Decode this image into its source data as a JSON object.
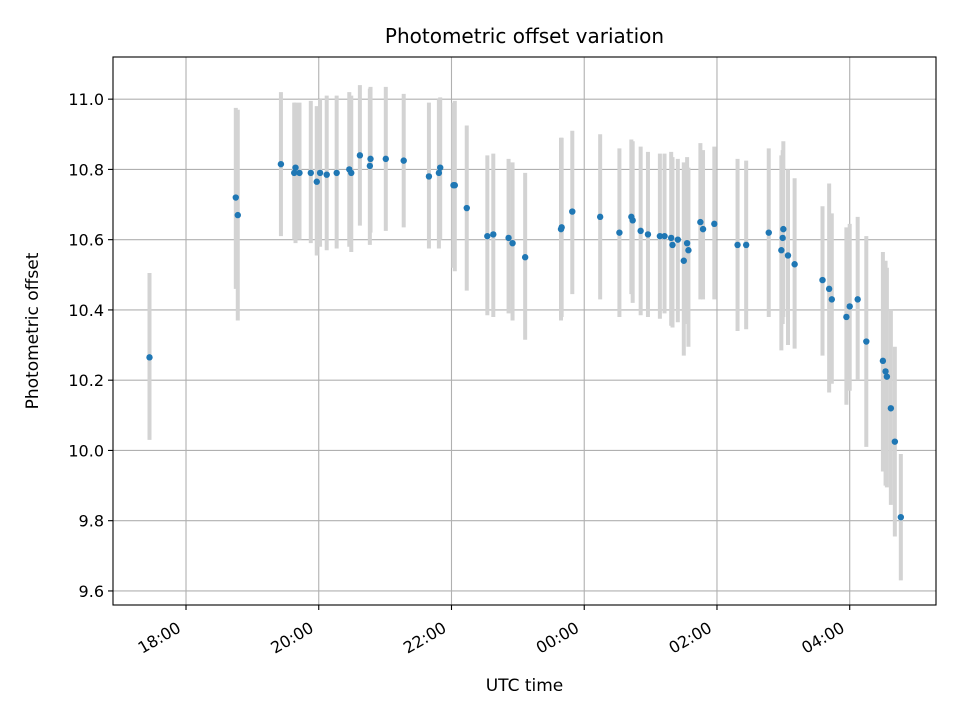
{
  "chart_data": {
    "type": "scatter",
    "title": "Photometric offset variation",
    "xlabel": "UTC time",
    "ylabel": "Photometric offset",
    "x_unit": "hours since 00:00 UTC",
    "xlim": [
      -7.1,
      5.3
    ],
    "ylim": [
      9.56,
      11.12
    ],
    "grid": true,
    "xticks": [
      {
        "value": -6,
        "label": "18:00"
      },
      {
        "value": -4,
        "label": "20:00"
      },
      {
        "value": -2,
        "label": "22:00"
      },
      {
        "value": 0,
        "label": "00:00"
      },
      {
        "value": 2,
        "label": "02:00"
      },
      {
        "value": 4,
        "label": "04:00"
      }
    ],
    "yticks": [
      {
        "value": 9.6,
        "label": "9.6"
      },
      {
        "value": 9.8,
        "label": "9.8"
      },
      {
        "value": 10.0,
        "label": "10.0"
      },
      {
        "value": 10.2,
        "label": "10.2"
      },
      {
        "value": 10.4,
        "label": "10.4"
      },
      {
        "value": 10.6,
        "label": "10.6"
      },
      {
        "value": 10.8,
        "label": "10.8"
      },
      {
        "value": 11.0,
        "label": "11.0"
      }
    ],
    "point_color": "#1f77b4",
    "errorbar_color": "#d3d3d3",
    "points": [
      {
        "x": -6.55,
        "y": 10.265,
        "lo": 10.03,
        "hi": 10.505
      },
      {
        "x": -5.25,
        "y": 10.72,
        "lo": 10.46,
        "hi": 10.975
      },
      {
        "x": -5.22,
        "y": 10.67,
        "lo": 10.37,
        "hi": 10.97
      },
      {
        "x": -4.57,
        "y": 10.815,
        "lo": 10.61,
        "hi": 11.02
      },
      {
        "x": -4.37,
        "y": 10.79,
        "lo": 10.6,
        "hi": 10.99
      },
      {
        "x": -4.35,
        "y": 10.805,
        "lo": 10.59,
        "hi": 10.99
      },
      {
        "x": -4.29,
        "y": 10.79,
        "lo": 10.6,
        "hi": 10.99
      },
      {
        "x": -4.12,
        "y": 10.79,
        "lo": 10.59,
        "hi": 10.995
      },
      {
        "x": -4.03,
        "y": 10.765,
        "lo": 10.555,
        "hi": 10.98
      },
      {
        "x": -3.98,
        "y": 10.79,
        "lo": 10.58,
        "hi": 11.0
      },
      {
        "x": -3.88,
        "y": 10.785,
        "lo": 10.57,
        "hi": 11.01
      },
      {
        "x": -3.73,
        "y": 10.79,
        "lo": 10.575,
        "hi": 11.01
      },
      {
        "x": -3.54,
        "y": 10.8,
        "lo": 10.58,
        "hi": 11.02
      },
      {
        "x": -3.51,
        "y": 10.79,
        "lo": 10.565,
        "hi": 11.01
      },
      {
        "x": -3.38,
        "y": 10.84,
        "lo": 10.64,
        "hi": 11.04
      },
      {
        "x": -3.22,
        "y": 10.83,
        "lo": 10.62,
        "hi": 11.035
      },
      {
        "x": -3.23,
        "y": 10.81,
        "lo": 10.585,
        "hi": 11.03
      },
      {
        "x": -2.99,
        "y": 10.83,
        "lo": 10.625,
        "hi": 11.035
      },
      {
        "x": -2.72,
        "y": 10.825,
        "lo": 10.635,
        "hi": 11.015
      },
      {
        "x": -2.34,
        "y": 10.78,
        "lo": 10.575,
        "hi": 10.99
      },
      {
        "x": -2.19,
        "y": 10.79,
        "lo": 10.575,
        "hi": 11.0
      },
      {
        "x": -2.17,
        "y": 10.805,
        "lo": 10.6,
        "hi": 11.005
      },
      {
        "x": -1.97,
        "y": 10.755,
        "lo": 10.52,
        "hi": 10.99
      },
      {
        "x": -1.95,
        "y": 10.755,
        "lo": 10.51,
        "hi": 10.995
      },
      {
        "x": -1.77,
        "y": 10.69,
        "lo": 10.455,
        "hi": 10.925
      },
      {
        "x": -1.46,
        "y": 10.61,
        "lo": 10.385,
        "hi": 10.84
      },
      {
        "x": -1.37,
        "y": 10.615,
        "lo": 10.38,
        "hi": 10.845
      },
      {
        "x": -1.14,
        "y": 10.605,
        "lo": 10.39,
        "hi": 10.83
      },
      {
        "x": -1.08,
        "y": 10.59,
        "lo": 10.37,
        "hi": 10.82
      },
      {
        "x": -0.89,
        "y": 10.55,
        "lo": 10.315,
        "hi": 10.79
      },
      {
        "x": -0.35,
        "y": 10.63,
        "lo": 10.37,
        "hi": 10.89
      },
      {
        "x": -0.34,
        "y": 10.635,
        "lo": 10.38,
        "hi": 10.89
      },
      {
        "x": -0.18,
        "y": 10.68,
        "lo": 10.445,
        "hi": 10.91
      },
      {
        "x": 0.24,
        "y": 10.665,
        "lo": 10.43,
        "hi": 10.9
      },
      {
        "x": 0.53,
        "y": 10.62,
        "lo": 10.38,
        "hi": 10.86
      },
      {
        "x": 0.71,
        "y": 10.665,
        "lo": 10.445,
        "hi": 10.885
      },
      {
        "x": 0.73,
        "y": 10.655,
        "lo": 10.42,
        "hi": 10.88
      },
      {
        "x": 0.85,
        "y": 10.625,
        "lo": 10.385,
        "hi": 10.865
      },
      {
        "x": 0.96,
        "y": 10.615,
        "lo": 10.38,
        "hi": 10.85
      },
      {
        "x": 1.14,
        "y": 10.61,
        "lo": 10.375,
        "hi": 10.845
      },
      {
        "x": 1.21,
        "y": 10.61,
        "lo": 10.39,
        "hi": 10.845
      },
      {
        "x": 1.31,
        "y": 10.605,
        "lo": 10.355,
        "hi": 10.85
      },
      {
        "x": 1.33,
        "y": 10.585,
        "lo": 10.35,
        "hi": 10.835
      },
      {
        "x": 1.41,
        "y": 10.6,
        "lo": 10.365,
        "hi": 10.83
      },
      {
        "x": 1.5,
        "y": 10.54,
        "lo": 10.27,
        "hi": 10.82
      },
      {
        "x": 1.55,
        "y": 10.59,
        "lo": 10.36,
        "hi": 10.835
      },
      {
        "x": 1.57,
        "y": 10.57,
        "lo": 10.295,
        "hi": 10.805
      },
      {
        "x": 1.75,
        "y": 10.65,
        "lo": 10.43,
        "hi": 10.875
      },
      {
        "x": 1.79,
        "y": 10.63,
        "lo": 10.43,
        "hi": 10.855
      },
      {
        "x": 1.96,
        "y": 10.645,
        "lo": 10.43,
        "hi": 10.865
      },
      {
        "x": 2.31,
        "y": 10.585,
        "lo": 10.34,
        "hi": 10.83
      },
      {
        "x": 2.44,
        "y": 10.585,
        "lo": 10.345,
        "hi": 10.825
      },
      {
        "x": 2.78,
        "y": 10.62,
        "lo": 10.38,
        "hi": 10.86
      },
      {
        "x": 2.97,
        "y": 10.57,
        "lo": 10.285,
        "hi": 10.84
      },
      {
        "x": 2.99,
        "y": 10.605,
        "lo": 10.36,
        "hi": 10.855
      },
      {
        "x": 3.0,
        "y": 10.63,
        "lo": 10.38,
        "hi": 10.88
      },
      {
        "x": 3.07,
        "y": 10.555,
        "lo": 10.3,
        "hi": 10.8
      },
      {
        "x": 3.17,
        "y": 10.53,
        "lo": 10.29,
        "hi": 10.775
      },
      {
        "x": 3.59,
        "y": 10.485,
        "lo": 10.27,
        "hi": 10.695
      },
      {
        "x": 3.69,
        "y": 10.46,
        "lo": 10.165,
        "hi": 10.76
      },
      {
        "x": 3.73,
        "y": 10.43,
        "lo": 10.19,
        "hi": 10.675
      },
      {
        "x": 3.95,
        "y": 10.38,
        "lo": 10.13,
        "hi": 10.635
      },
      {
        "x": 4.0,
        "y": 10.41,
        "lo": 10.17,
        "hi": 10.645
      },
      {
        "x": 4.12,
        "y": 10.43,
        "lo": 10.2,
        "hi": 10.665
      },
      {
        "x": 4.25,
        "y": 10.31,
        "lo": 10.01,
        "hi": 10.61
      },
      {
        "x": 4.5,
        "y": 10.255,
        "lo": 9.94,
        "hi": 10.565
      },
      {
        "x": 4.54,
        "y": 10.225,
        "lo": 9.9,
        "hi": 10.54
      },
      {
        "x": 4.56,
        "y": 10.21,
        "lo": 9.895,
        "hi": 10.52
      },
      {
        "x": 4.62,
        "y": 10.12,
        "lo": 9.845,
        "hi": 10.4
      },
      {
        "x": 4.68,
        "y": 10.025,
        "lo": 9.755,
        "hi": 10.295
      },
      {
        "x": 4.77,
        "y": 9.81,
        "lo": 9.63,
        "hi": 9.99
      }
    ]
  }
}
